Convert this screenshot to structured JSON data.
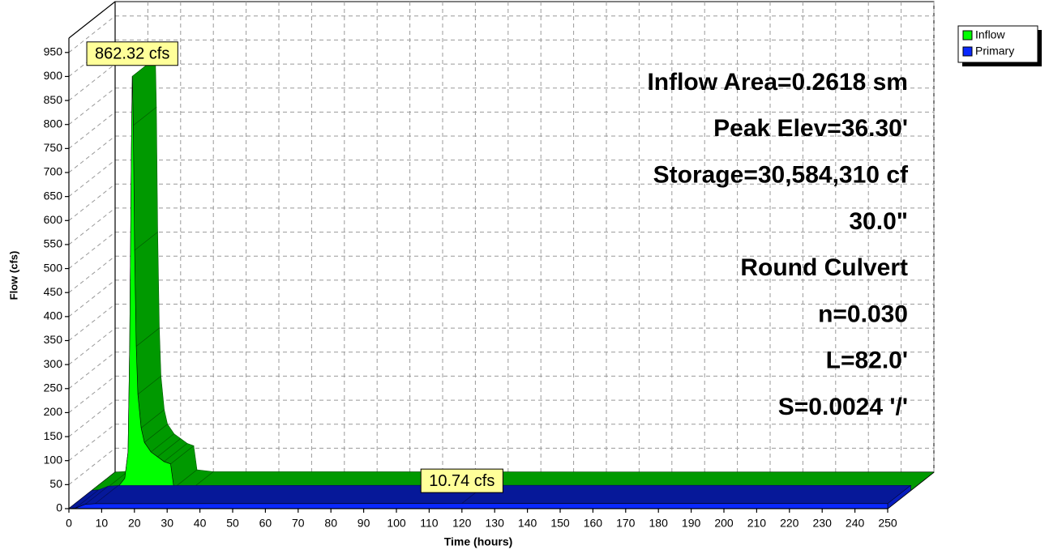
{
  "chart_data": {
    "type": "area3d",
    "xlabel": "Time  (hours)",
    "ylabel": "Flow  (cfs)",
    "xlim": [
      0,
      250
    ],
    "ylim": [
      0,
      980
    ],
    "xticks": [
      0,
      10,
      20,
      30,
      40,
      50,
      60,
      70,
      80,
      90,
      100,
      110,
      120,
      130,
      140,
      150,
      160,
      170,
      180,
      190,
      200,
      210,
      220,
      230,
      240,
      250
    ],
    "yticks": [
      0,
      50,
      100,
      150,
      200,
      250,
      300,
      350,
      400,
      450,
      500,
      550,
      600,
      650,
      700,
      750,
      800,
      850,
      900,
      950
    ],
    "grid": true,
    "legend": "top-right",
    "annotations": [
      "Inflow Area=0.2618 sm",
      "Peak Elev=36.30'",
      "Storage=30,584,310 cf",
      "30.0\"",
      "Round Culvert",
      "n=0.030",
      "L=82.0'",
      "S=0.0024 '/'"
    ],
    "series": [
      {
        "name": "Inflow",
        "color": "#00ff00",
        "x": [
          0,
          4,
          8,
          10,
          11,
          11.5,
          12,
          12.3,
          12.6,
          13,
          13.5,
          14,
          15,
          16,
          18,
          20,
          22,
          24,
          25,
          30,
          250
        ],
        "values": [
          0,
          2,
          8,
          25,
          80,
          300,
          700,
          862.32,
          760,
          500,
          300,
          200,
          130,
          100,
          80,
          70,
          60,
          55,
          5,
          1,
          0
        ],
        "value_labels": [
          null,
          null,
          null,
          null,
          null,
          null,
          null,
          "862.32 cfs",
          null,
          null,
          null,
          null,
          null,
          null,
          null,
          null,
          null,
          null,
          null,
          null,
          null
        ]
      },
      {
        "name": "Primary",
        "color": "#0a28ff",
        "x": [
          0,
          2,
          5,
          8,
          120,
          250
        ],
        "values": [
          0,
          1,
          9,
          10.2,
          10.74,
          10.5
        ],
        "value_labels": [
          null,
          null,
          null,
          null,
          "10.74 cfs",
          null
        ]
      }
    ]
  }
}
